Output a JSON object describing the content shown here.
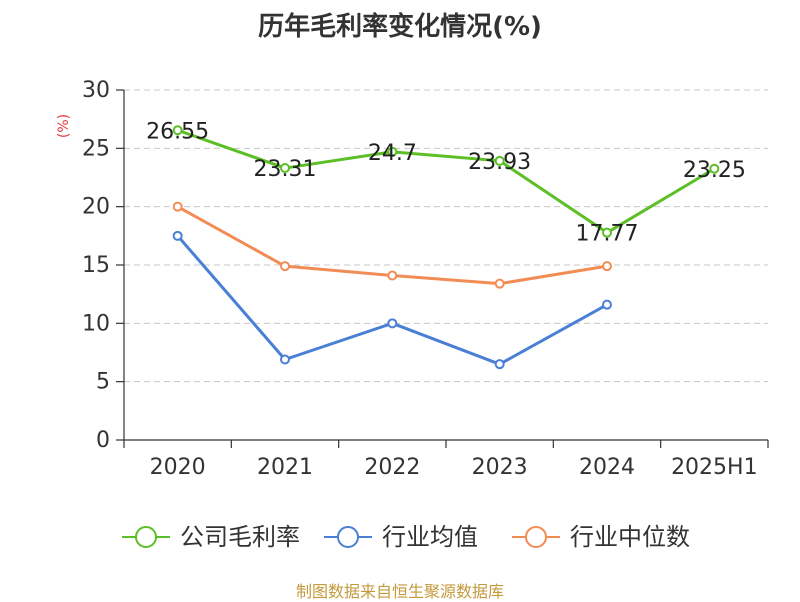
{
  "title": "历年毛利率变化情况(%)",
  "y_unit": "(%)",
  "source": "制图数据来自恒生聚源数据库",
  "chart_data": {
    "type": "line",
    "title": "历年毛利率变化情况(%)",
    "xlabel": "",
    "ylabel": "(%)",
    "categories": [
      "2020",
      "2021",
      "2022",
      "2023",
      "2024",
      "2025H1"
    ],
    "ylim": [
      0,
      30
    ],
    "yticks": [
      0,
      5,
      10,
      15,
      20,
      25,
      30
    ],
    "grid": "horizontal dashed",
    "legend_position": "bottom",
    "series": [
      {
        "name": "公司毛利率",
        "color": "#5bbf25",
        "values": [
          26.55,
          23.31,
          24.7,
          23.93,
          17.77,
          23.25
        ],
        "labels": [
          "26.55",
          "23.31",
          "24.7",
          "23.93",
          "17.77",
          "23.25"
        ]
      },
      {
        "name": "行业均值",
        "color": "#4a7fd6",
        "values": [
          17.5,
          6.9,
          10.0,
          6.5,
          11.6,
          null
        ]
      },
      {
        "name": "行业中位数",
        "color": "#f28c55",
        "values": [
          20.0,
          14.9,
          14.1,
          13.4,
          14.9,
          null
        ]
      }
    ]
  }
}
